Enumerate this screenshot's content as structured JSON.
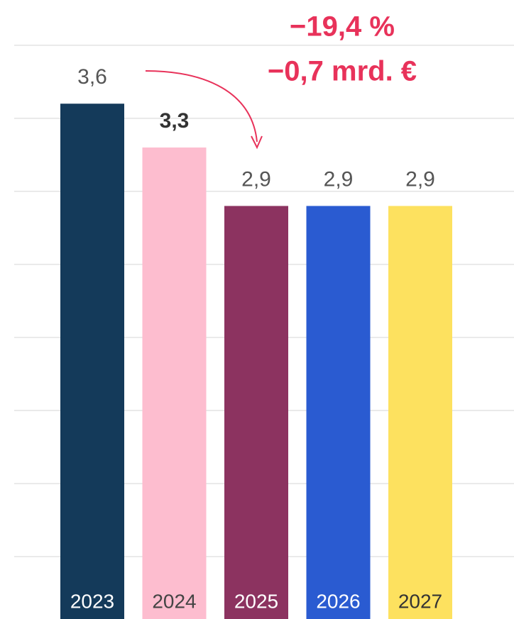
{
  "chart_data": {
    "type": "bar",
    "categories": [
      "2023",
      "2024",
      "2025",
      "2026",
      "2027"
    ],
    "values": [
      3.6,
      3.3,
      2.9,
      2.9,
      2.9
    ],
    "value_labels": [
      "3,6",
      "3,3",
      "2,9",
      "2,9",
      "2,9"
    ],
    "colors": [
      "#143a5a",
      "#fdbdcf",
      "#8c3360",
      "#2a5bd1",
      "#fde15f"
    ],
    "label_colors": [
      "#ffffff",
      "#444444",
      "#ffffff",
      "#ffffff",
      "#333333"
    ],
    "highlight_index": 1,
    "annotations": [
      "−19,4 %",
      "−0,7 mrd. €"
    ],
    "annotation_color": "#e8325a",
    "ylim": [
      0,
      4.3
    ],
    "yticks": [
      0.5,
      1,
      1.5,
      2,
      2.5,
      3,
      3.5,
      4
    ],
    "grid": true
  }
}
